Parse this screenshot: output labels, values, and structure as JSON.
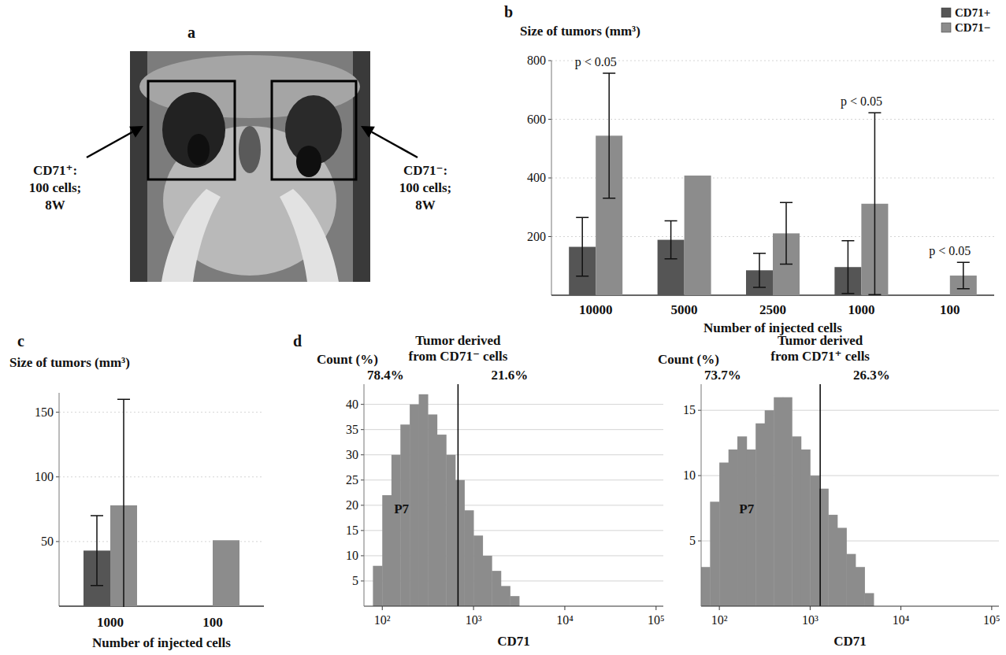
{
  "image_panel": {
    "panel_label": "a",
    "labels": [
      [
        "CD71⁺:",
        "100 cells;",
        "8W"
      ],
      [
        "CD71⁻:",
        "100 cells;",
        "8W"
      ]
    ]
  },
  "chart_data": [
    {
      "type": "bar",
      "panel_label": "b",
      "y_label": "Size of tumors (mm³)",
      "x_label": "Number of injected cells",
      "categories": [
        "10000",
        "5000",
        "2500",
        "1000",
        "100"
      ],
      "series": [
        {
          "name": "CD71+",
          "color": "#555555",
          "values": [
            165,
            189,
            85,
            96,
            null
          ],
          "errors": [
            100,
            65,
            58,
            90,
            null
          ]
        },
        {
          "name": "CD71−",
          "color": "#8c8c8c",
          "values": [
            544,
            408,
            211,
            312,
            67
          ],
          "errors": [
            213,
            null,
            105,
            310,
            45
          ]
        }
      ],
      "ylim": [
        0,
        800
      ],
      "yticks": [
        200,
        400,
        600,
        800
      ],
      "grid": true,
      "legend": "top-right",
      "annotations": [
        {
          "text": "p < 0.05",
          "category": 0
        },
        {
          "text": "p < 0.05",
          "category": 3
        },
        {
          "text": "p < 0.05",
          "category": 4
        }
      ]
    },
    {
      "type": "bar",
      "panel_label": "c",
      "y_label": "Size of tumors (mm³)",
      "x_label": "Number of injected cells",
      "categories": [
        "1000",
        "100"
      ],
      "series": [
        {
          "color": "#555555",
          "values": [
            43,
            null
          ],
          "errors": [
            27,
            null
          ]
        },
        {
          "color": "#8c8c8c",
          "values": [
            78,
            51
          ],
          "errors": [
            82,
            null
          ]
        }
      ],
      "ylim": [
        0,
        165
      ],
      "yticks": [
        50,
        100,
        150
      ],
      "grid": true
    },
    {
      "type": "histogram",
      "panel_label": "d",
      "title": "Tumor derived from CD71⁻ cells",
      "y_label": "Count (%)",
      "x_label": "CD71",
      "bins": [
        79,
        100,
        126,
        158,
        200,
        251,
        316,
        398,
        501,
        631,
        794,
        1000,
        1259,
        1585,
        1995,
        2512,
        3162
      ],
      "values": [
        8,
        22,
        30,
        36,
        40,
        42,
        38,
        34,
        30,
        25,
        19,
        14,
        10,
        7,
        4,
        2
      ],
      "color": "#8c8c8c",
      "log": "x",
      "xlim": [
        63,
        120000
      ],
      "xticks": [
        {
          "value": 100,
          "label": "10²"
        },
        {
          "value": 1000,
          "label": "10³"
        },
        {
          "value": 10000,
          "label": "10⁴"
        },
        {
          "value": 100000,
          "label": "10⁵"
        }
      ],
      "ylim": [
        0,
        44
      ],
      "yticks": [
        5,
        10,
        15,
        20,
        25,
        30,
        35,
        40
      ],
      "grid": true,
      "gate": 676,
      "gate_labels": [
        "78.4%",
        "21.6%"
      ],
      "gate_name": "P7"
    },
    {
      "type": "histogram",
      "title": "Tumor derived from CD71⁺ cells",
      "y_label": "Count (%)",
      "x_label": "CD71",
      "bins": [
        63,
        79,
        100,
        126,
        158,
        200,
        251,
        316,
        398,
        501,
        631,
        794,
        1000,
        1259,
        1585,
        1995,
        2512,
        3162,
        3981,
        5012
      ],
      "values": [
        3,
        8,
        11,
        12,
        13,
        12,
        14,
        15,
        16,
        16,
        13,
        12,
        10,
        9,
        7,
        6,
        4,
        3,
        1
      ],
      "color": "#8c8c8c",
      "log": "x",
      "xlim": [
        63,
        120000
      ],
      "xticks": [
        {
          "value": 100,
          "label": "10²"
        },
        {
          "value": 1000,
          "label": "10³"
        },
        {
          "value": 10000,
          "label": "10⁴"
        },
        {
          "value": 100000,
          "label": "10⁵"
        }
      ],
      "ylim": [
        0,
        17
      ],
      "yticks": [
        5,
        10,
        15
      ],
      "grid": true,
      "gate": 1290,
      "gate_labels": [
        "73.7%",
        "26.3%"
      ],
      "gate_name": "P7"
    }
  ]
}
